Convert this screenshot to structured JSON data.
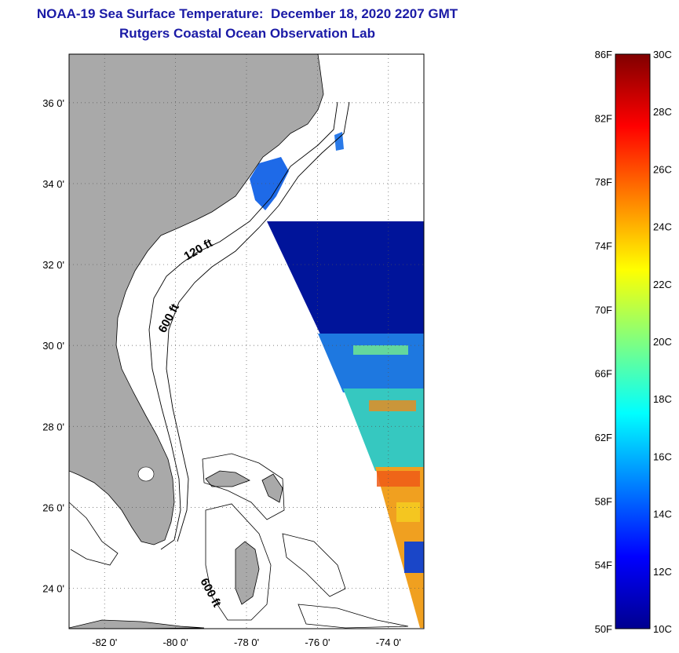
{
  "header": {
    "title": "NOAA-19 Sea Surface Temperature:  December 18, 2020 2207 GMT",
    "subtitle": "Rutgers Coastal Ocean Observation Lab"
  },
  "map": {
    "lat_labels": [
      "36 0'",
      "34 0'",
      "32 0'",
      "30 0'",
      "28 0'",
      "26 0'",
      "24 0'"
    ],
    "lat_values": [
      36,
      34,
      32,
      30,
      28,
      26,
      24
    ],
    "lon_labels": [
      "-82 0'",
      "-80 0'",
      "-78 0'",
      "-76 0'",
      "-74 0'"
    ],
    "lon_values": [
      -82,
      -80,
      -78,
      -76,
      -74
    ],
    "lat_range": [
      23,
      37.2
    ],
    "lon_range": [
      -83,
      -73
    ],
    "contour_labels": [
      "120 ft",
      "600 ft",
      "600 ft"
    ],
    "grid": "dotted",
    "colors": {
      "land": "#a9a9a9",
      "title": "#1a1aa6"
    }
  },
  "colorbar": {
    "fahrenheit_labels": [
      "86F",
      "82F",
      "78F",
      "74F",
      "70F",
      "66F",
      "62F",
      "58F",
      "54F",
      "50F"
    ],
    "fahrenheit_values": [
      86,
      82,
      78,
      74,
      70,
      66,
      62,
      58,
      54,
      50
    ],
    "celsius_labels": [
      "30C",
      "28C",
      "26C",
      "24C",
      "22C",
      "20C",
      "18C",
      "16C",
      "14C",
      "12C",
      "10C"
    ],
    "celsius_values": [
      30,
      28,
      26,
      24,
      22,
      20,
      18,
      16,
      14,
      12,
      10
    ],
    "range_c": [
      10,
      30
    ],
    "colormap": [
      "#00008f",
      "#0000ff",
      "#0080ff",
      "#00ffff",
      "#80ff80",
      "#ffff00",
      "#ff8000",
      "#ff0000",
      "#800000"
    ]
  }
}
